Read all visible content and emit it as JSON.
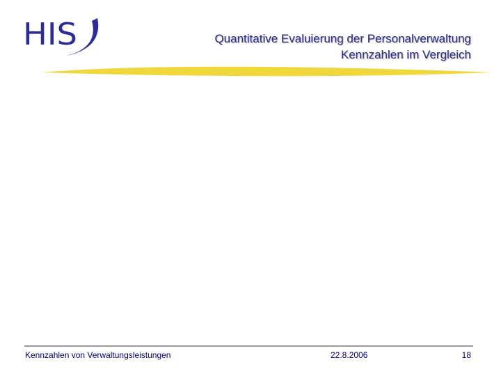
{
  "header": {
    "logo": "HIS",
    "title_lines": [
      "Quantitative Evaluierung der Personalverwaltung",
      "Kennzahlen im Vergleich"
    ]
  },
  "footer": {
    "left": "Kennzahlen von Verwaltungsleistungen",
    "date": "22.8.2006",
    "page": "18"
  }
}
